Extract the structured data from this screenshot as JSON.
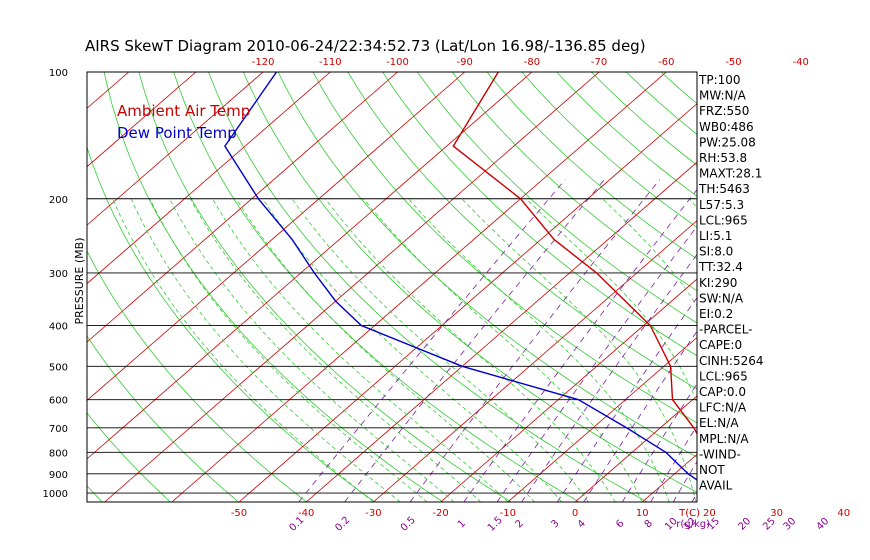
{
  "chart_data": {
    "type": "line",
    "title": "AIRS SkewT Diagram 2010-06-24/22:34:52.73 (Lat/Lon 16.98/-136.85 deg)",
    "ylabel": "PRESSURE (MB)",
    "ylim": [
      1050,
      100
    ],
    "pressure_ticks": [
      {
        "p": 100,
        "label": "100"
      },
      {
        "p": 200,
        "label": "200"
      },
      {
        "p": 300,
        "label": "300"
      },
      {
        "p": 400,
        "label": "400"
      },
      {
        "p": 500,
        "label": "500"
      },
      {
        "p": 600,
        "label": "600"
      },
      {
        "p": 700,
        "label": "700"
      },
      {
        "p": 800,
        "label": "800"
      },
      {
        "p": 900,
        "label": "900"
      },
      {
        "p": 1000,
        "label": "1000"
      }
    ],
    "isobars_drawn": [
      200,
      300,
      400,
      500,
      600,
      700,
      800,
      900,
      1000
    ],
    "top_temp_labels": [
      "-120",
      "-110",
      "-100",
      "-90",
      "-80",
      "-70",
      "-60",
      "-50",
      "-40"
    ],
    "bottom_temp_labels": [
      "-50",
      "-40",
      "-30",
      "-20",
      "-10",
      "0",
      "10",
      "20",
      "30",
      "40"
    ],
    "bottom_axis_unit": "T(C)",
    "mixing_ratio_labels": [
      "0.1",
      "0.2",
      "0.5",
      "1",
      "1.5",
      "2",
      "3",
      "4",
      "6",
      "8",
      "10",
      "12",
      "15",
      "20",
      "25",
      "30",
      "40"
    ],
    "mixing_ratio_unit": "r(g/kg)",
    "series": [
      {
        "name": "Ambient Air Temp",
        "color": "#cc0000",
        "points": [
          {
            "p": 100,
            "t": -85.0
          },
          {
            "p": 150,
            "t": -79.0
          },
          {
            "p": 200,
            "t": -60.0
          },
          {
            "p": 250,
            "t": -48.0
          },
          {
            "p": 300,
            "t": -36.0
          },
          {
            "p": 400,
            "t": -19.0
          },
          {
            "p": 500,
            "t": -9.0
          },
          {
            "p": 600,
            "t": -3.0
          },
          {
            "p": 700,
            "t": 5.0
          },
          {
            "p": 850,
            "t": 14.0
          },
          {
            "p": 900,
            "t": 17.0
          },
          {
            "p": 1000,
            "t": 23.5
          },
          {
            "p": 1050,
            "t": 26.5
          }
        ]
      },
      {
        "name": "Dew Point Temp",
        "color": "#0000cc",
        "points": [
          {
            "p": 100,
            "t": -118.0
          },
          {
            "p": 150,
            "t": -113.0
          },
          {
            "p": 200,
            "t": -99.0
          },
          {
            "p": 250,
            "t": -87.0
          },
          {
            "p": 300,
            "t": -78.0
          },
          {
            "p": 350,
            "t": -70.0
          },
          {
            "p": 400,
            "t": -62.0
          },
          {
            "p": 500,
            "t": -40.0
          },
          {
            "p": 600,
            "t": -17.0
          },
          {
            "p": 700,
            "t": -5.0
          },
          {
            "p": 800,
            "t": 5.0
          },
          {
            "p": 900,
            "t": 12.0
          },
          {
            "p": 1000,
            "t": 19.5
          },
          {
            "p": 1050,
            "t": 21.0
          }
        ]
      }
    ],
    "legend": [
      "Ambient Air Temp",
      "Dew Point Temp"
    ],
    "legend_position": "top-left",
    "grid": true,
    "indices": [
      "TP:100",
      "MW:N/A",
      "FRZ:550",
      "WB0:486",
      "PW:25.08",
      "RH:53.8",
      "MAXT:28.1",
      "TH:5463",
      "L57:5.3",
      "LCL:965",
      "LI:5.1",
      "SI:8.0",
      "TT:32.4",
      "KI:290",
      "SW:N/A",
      "EI:0.2",
      "-PARCEL-",
      "CAPE:0",
      "CINH:5264",
      "LCL:965",
      "CAP:0.0",
      "LFC:N/A",
      "EL:N/A",
      "MPL:N/A",
      "-WIND-",
      "NOT",
      "AVAIL"
    ]
  }
}
